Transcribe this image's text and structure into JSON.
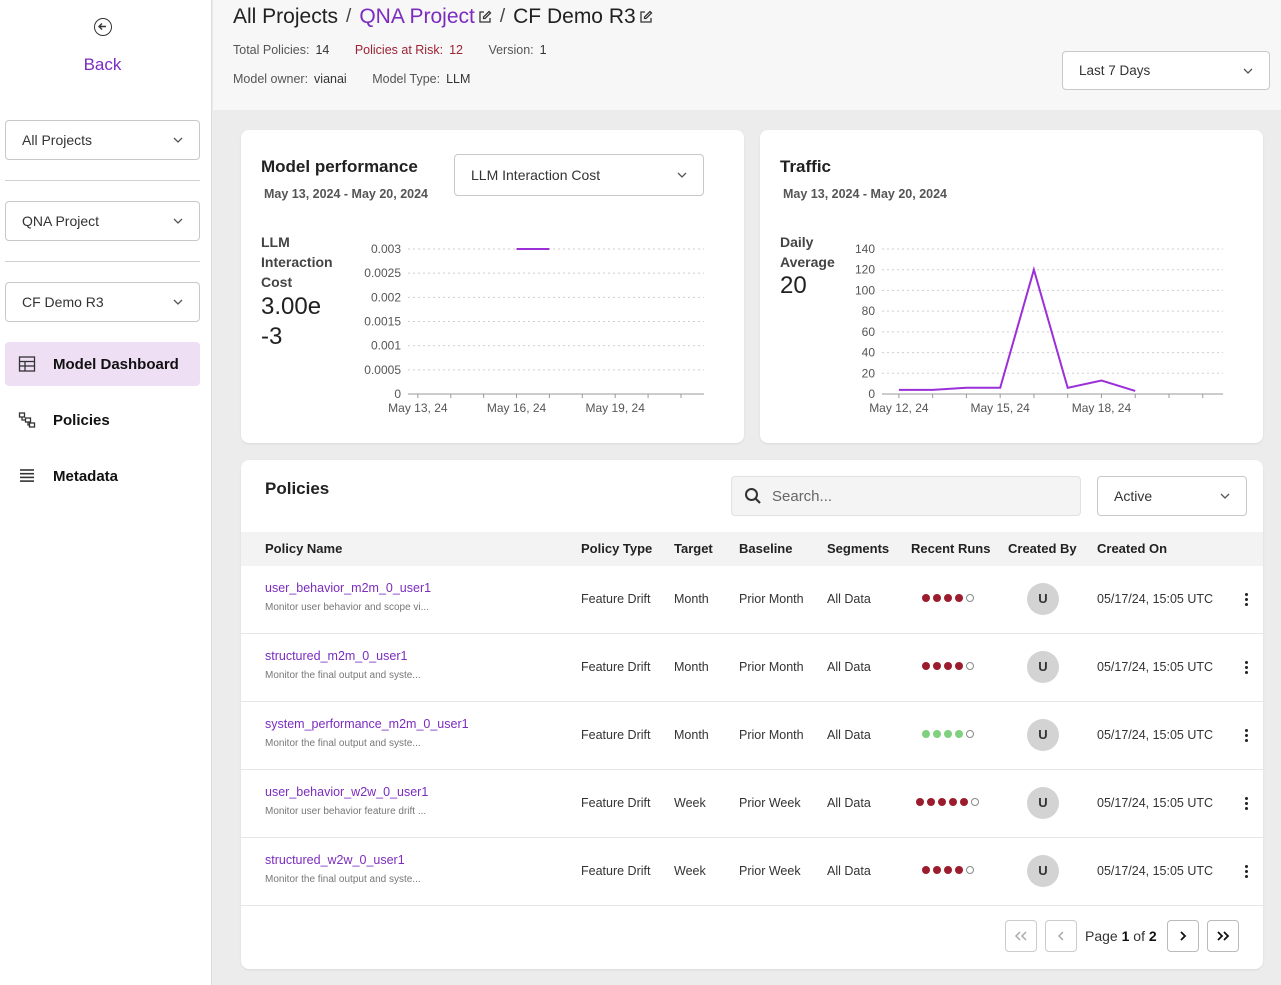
{
  "sidebar": {
    "back_label": "Back",
    "project_filter": "All Projects",
    "project": "QNA Project",
    "model": "CF Demo R3",
    "nav": [
      {
        "label": "Model Dashboard",
        "icon": "dashboard-icon"
      },
      {
        "label": "Policies",
        "icon": "policies-icon"
      },
      {
        "label": "Metadata",
        "icon": "list-icon"
      }
    ]
  },
  "header": {
    "crumb_all": "All Projects",
    "crumb_project": "QNA Project",
    "crumb_model": "CF Demo R3",
    "sep": "/",
    "total_policies_label": "Total Policies:",
    "total_policies": "14",
    "at_risk_label": "Policies at Risk:",
    "at_risk": "12",
    "version_label": "Version:",
    "version": "1",
    "owner_label": "Model owner:",
    "owner": "vianai",
    "type_label": "Model Type:",
    "type": "LLM",
    "range": "Last 7 Days"
  },
  "performance": {
    "title": "Model performance",
    "date_range": "May 13, 2024 - May 20, 2024",
    "metric_select": "LLM Interaction Cost",
    "kpi_label_1": "LLM",
    "kpi_label_2": "Interaction",
    "kpi_label_3": "Cost",
    "kpi_value_1": "3.00e",
    "kpi_value_2": "-3"
  },
  "traffic": {
    "title": "Traffic",
    "date_range": "May 13, 2024 - May 20, 2024",
    "kpi_label_1": "Daily",
    "kpi_label_2": "Average",
    "kpi_value": "20"
  },
  "chart_data": [
    {
      "type": "line",
      "title": "Model performance",
      "ylabel": "LLM Interaction Cost",
      "ylim": [
        0,
        0.003
      ],
      "yticks": [
        "0.003",
        "0.0025",
        "0.002",
        "0.0015",
        "0.001",
        "0.0005",
        "0"
      ],
      "xticks": [
        "May 13, 24",
        "May 16, 24",
        "May 19, 24"
      ],
      "series": [
        {
          "name": "LLM Interaction Cost",
          "x": [
            16.0,
            17.0
          ],
          "values": [
            0.003,
            0.003
          ],
          "color": "#9b30d9"
        }
      ]
    },
    {
      "type": "line",
      "title": "Traffic",
      "ylabel": "Daily Average",
      "ylim": [
        0,
        140
      ],
      "yticks": [
        "140",
        "120",
        "100",
        "80",
        "60",
        "40",
        "20",
        "0"
      ],
      "xticks": [
        "May 12, 24",
        "May 15, 24",
        "May 18, 24"
      ],
      "series": [
        {
          "name": "Traffic",
          "x": [
            12,
            13,
            14,
            15,
            16,
            17,
            18,
            19
          ],
          "values": [
            4,
            4,
            6,
            6,
            120,
            6,
            13,
            3
          ],
          "color": "#9b30d9"
        }
      ]
    }
  ],
  "policies": {
    "title": "Policies",
    "search_placeholder": "Search...",
    "status_filter": "Active",
    "columns": [
      "Policy Name",
      "Policy Type",
      "Target",
      "Baseline",
      "Segments",
      "Recent Runs",
      "Created By",
      "Created On"
    ],
    "rows": [
      {
        "name": "user_behavior_m2m_0_user1",
        "desc": "Monitor user behavior and scope vi...",
        "type": "Feature Drift",
        "target": "Month",
        "baseline": "Prior Month",
        "segments": "All Data",
        "runs": [
          "fail",
          "fail",
          "fail",
          "fail",
          "empty"
        ],
        "created_by": "U",
        "created_on": "05/17/24, 15:05 UTC"
      },
      {
        "name": "structured_m2m_0_user1",
        "desc": "Monitor the final output and syste...",
        "type": "Feature Drift",
        "target": "Month",
        "baseline": "Prior Month",
        "segments": "All Data",
        "runs": [
          "fail",
          "fail",
          "fail",
          "fail",
          "empty"
        ],
        "created_by": "U",
        "created_on": "05/17/24, 15:05 UTC"
      },
      {
        "name": "system_performance_m2m_0_user1",
        "desc": "Monitor the final output and syste...",
        "type": "Feature Drift",
        "target": "Month",
        "baseline": "Prior Month",
        "segments": "All Data",
        "runs": [
          "pass",
          "pass",
          "pass",
          "pass",
          "empty"
        ],
        "created_by": "U",
        "created_on": "05/17/24, 15:05 UTC"
      },
      {
        "name": "user_behavior_w2w_0_user1",
        "desc": "Monitor user behavior feature drift ...",
        "type": "Feature Drift",
        "target": "Week",
        "baseline": "Prior Week",
        "segments": "All Data",
        "runs": [
          "fail",
          "fail",
          "fail",
          "fail",
          "fail",
          "empty"
        ],
        "created_by": "U",
        "created_on": "05/17/24, 15:05 UTC"
      },
      {
        "name": "structured_w2w_0_user1",
        "desc": "Monitor the final output and syste...",
        "type": "Feature Drift",
        "target": "Week",
        "baseline": "Prior Week",
        "segments": "All Data",
        "runs": [
          "fail",
          "fail",
          "fail",
          "fail",
          "empty"
        ],
        "created_by": "U",
        "created_on": "05/17/24, 15:05 UTC"
      }
    ],
    "pager": {
      "page_word": "Page",
      "current": "1",
      "of_word": "of",
      "total": "2"
    }
  },
  "colors": {
    "accent": "#7b2cbf",
    "line": "#9b30d9",
    "fail": "#9b1c2c",
    "pass": "#7fd07f"
  }
}
